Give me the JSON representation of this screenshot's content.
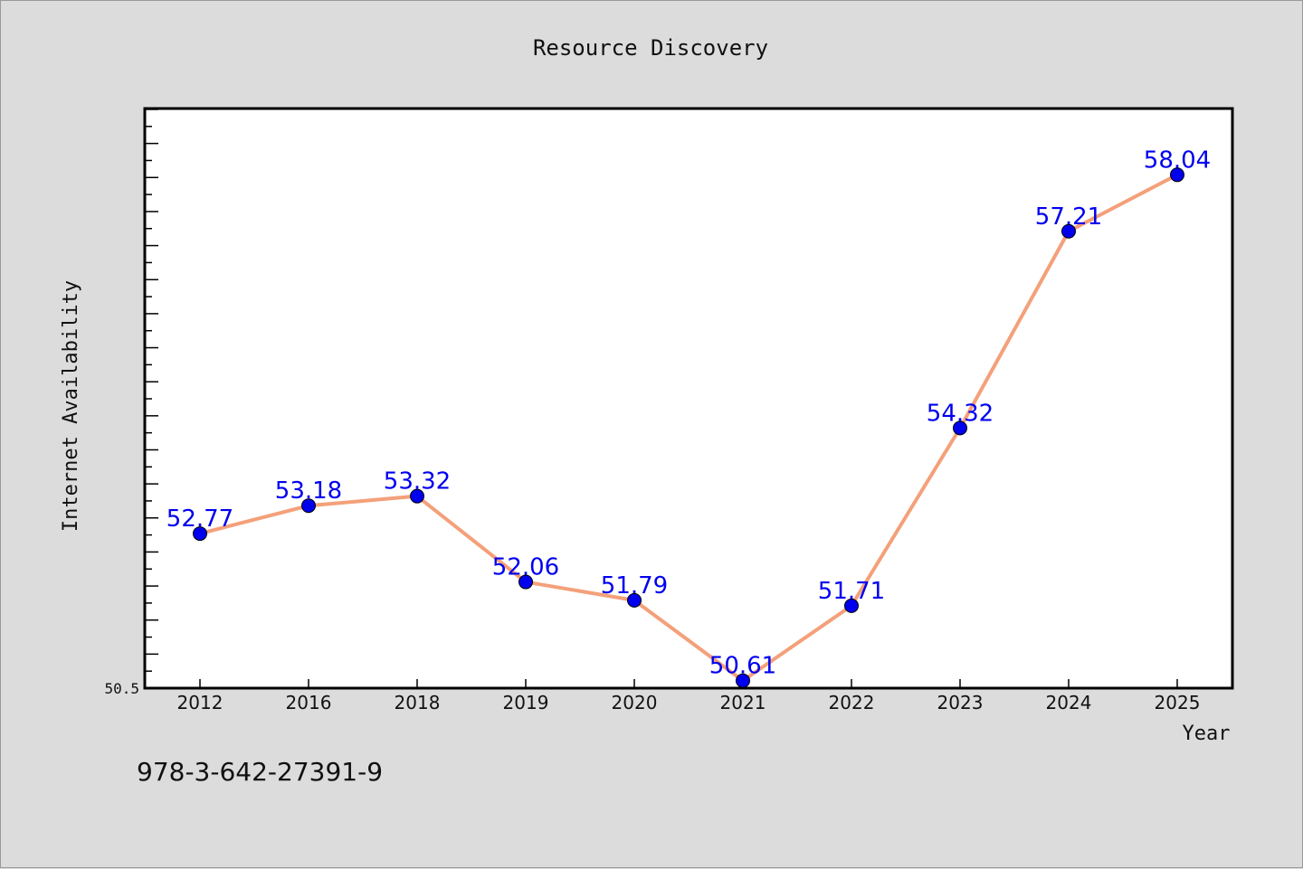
{
  "chart_data": {
    "type": "line",
    "title": "Resource Discovery",
    "xlabel": "Year",
    "ylabel": "Internet Availability",
    "categories": [
      "2012",
      "2016",
      "2018",
      "2019",
      "2020",
      "2021",
      "2022",
      "2023",
      "2024",
      "2025"
    ],
    "series": [
      {
        "values": [
          52.77,
          53.18,
          53.32,
          52.06,
          51.79,
          50.61,
          51.71,
          54.32,
          57.21,
          58.04
        ],
        "labels": [
          "52.77",
          "53.18",
          "53.32",
          "52.06",
          "51.79",
          "50.61",
          "51.71",
          "54.32",
          "57.21",
          "58.04"
        ]
      }
    ],
    "ylim": [
      50.5,
      59.0
    ],
    "y_tick_labels": [
      "50.5"
    ],
    "grid": false,
    "legend": "none",
    "line_color": "#f4a07a",
    "marker_color": "#0000ee",
    "label_color": "#0000ee"
  },
  "footer": {
    "isbn": "978-3-642-27391-9"
  }
}
